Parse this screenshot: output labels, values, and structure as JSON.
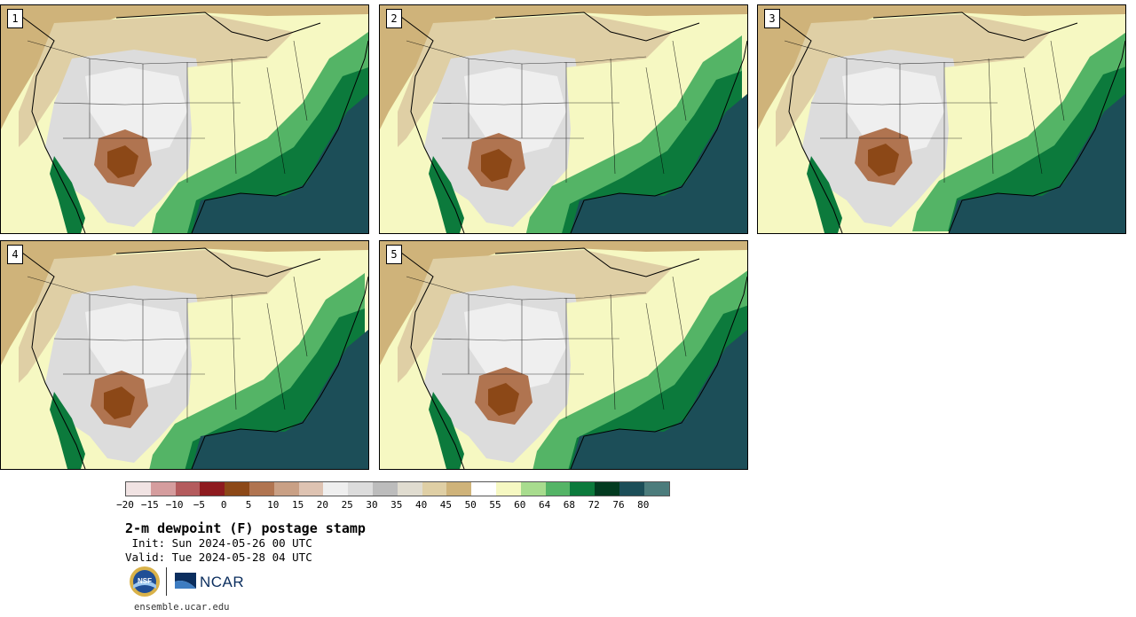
{
  "panels": [
    {
      "label": "1"
    },
    {
      "label": "2"
    },
    {
      "label": "3"
    },
    {
      "label": "4"
    },
    {
      "label": "5"
    }
  ],
  "colorbar": {
    "colors": [
      "#f1e3e3",
      "#d59d9e",
      "#b45b5d",
      "#8e1b1f",
      "#8c4817",
      "#b07450",
      "#c9a085",
      "#dec3b2",
      "#efefef",
      "#dcdcdc",
      "#bcbcbc",
      "#e0dcd0",
      "#dfcfa5",
      "#cfb37a",
      "#ffffff",
      "#f6f8c2",
      "#a8dc8e",
      "#54b466",
      "#0c7a3c",
      "#033b20",
      "#1c4e58",
      "#4c7c7c"
    ],
    "ticks": [
      "−20",
      "−15",
      "−10",
      "−5",
      "0",
      "5",
      "10",
      "15",
      "20",
      "25",
      "30",
      "35",
      "40",
      "45",
      "50",
      "55",
      "60",
      "64",
      "68",
      "72",
      "76",
      "80"
    ]
  },
  "text": {
    "title": "2-m dewpoint (F) postage stamp",
    "init": " Init: Sun 2024-05-26 00 UTC",
    "valid": "Valid: Tue 2024-05-28 04 UTC",
    "footer": "ensemble.ucar.edu",
    "ncar": "NCAR"
  },
  "icons": {
    "nsf": "nsf-logo-icon",
    "ncar": "ncar-logo-icon"
  }
}
